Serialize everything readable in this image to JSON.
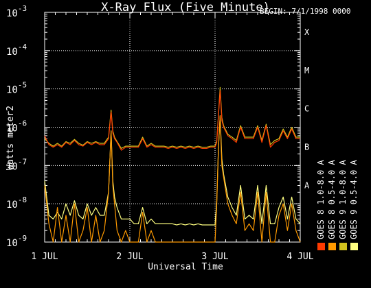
{
  "header": {
    "title": "X-Ray Flux (Five Minute)",
    "begin": "BEGIN: 7/1/1998 0000"
  },
  "axes": {
    "ylabel": "Watts meter2",
    "xlabel": "Universal Time"
  },
  "legend": {
    "items": [
      {
        "label": "GOES 8 1.0-8.0 A",
        "color": "#ff3a00"
      },
      {
        "label": "GOES 8 0.5-4.0 A",
        "color": "#ff9a00"
      },
      {
        "label": "GOES 9 1.0-8.0 A",
        "color": "#d2c21e"
      },
      {
        "label": "GOES 9 0.5-4.0 A",
        "color": "#ffff80"
      }
    ]
  },
  "chart_data": {
    "type": "line",
    "title": "X-Ray Flux (Five Minute)",
    "xlabel": "Universal Time",
    "ylabel": "Watts meter2",
    "x_ticks": [
      "1 JUL",
      "2 JUL",
      "3 JUL",
      "4 JUL"
    ],
    "y_ticks": [
      "10^-9",
      "10^-8",
      "10^-7",
      "10^-6",
      "10^-5",
      "10^-4",
      "10^-3"
    ],
    "y_scale": "log",
    "ylim": [
      1e-09,
      0.001
    ],
    "x_range_days": [
      1.0,
      4.0
    ],
    "class_labels": [
      {
        "label": "A",
        "flux": 1e-08
      },
      {
        "label": "B",
        "flux": 1e-07
      },
      {
        "label": "C",
        "flux": 1e-06
      },
      {
        "label": "M",
        "flux": 1e-05
      },
      {
        "label": "X",
        "flux": 0.0001
      }
    ],
    "grid": true,
    "series": [
      {
        "name": "GOES 8 1.0-8.0 A",
        "x": [
          1.0,
          1.05,
          1.1,
          1.15,
          1.2,
          1.25,
          1.3,
          1.35,
          1.4,
          1.45,
          1.5,
          1.55,
          1.6,
          1.65,
          1.7,
          1.75,
          1.78,
          1.8,
          1.82,
          1.85,
          1.9,
          1.95,
          2.0,
          2.05,
          2.1,
          2.15,
          2.2,
          2.25,
          2.3,
          2.35,
          2.4,
          2.45,
          2.5,
          2.55,
          2.6,
          2.65,
          2.7,
          2.75,
          2.8,
          2.85,
          2.9,
          2.95,
          3.0,
          3.02,
          3.04,
          3.06,
          3.08,
          3.1,
          3.15,
          3.2,
          3.25,
          3.3,
          3.35,
          3.4,
          3.45,
          3.5,
          3.55,
          3.6,
          3.65,
          3.7,
          3.75,
          3.8,
          3.85,
          3.9,
          3.95,
          4.0
        ],
        "y": [
          6e-07,
          3.5e-07,
          3e-07,
          3.5e-07,
          3e-07,
          4e-07,
          3.5e-07,
          4.5e-07,
          3.5e-07,
          3.2e-07,
          4e-07,
          3.5e-07,
          4e-07,
          3.5e-07,
          3.5e-07,
          5e-07,
          2.5e-06,
          7e-07,
          5e-07,
          4e-07,
          2.5e-07,
          3e-07,
          3e-07,
          3e-07,
          3e-07,
          5e-07,
          3e-07,
          3.5e-07,
          3e-07,
          3e-07,
          3e-07,
          2.8e-07,
          3e-07,
          2.8e-07,
          3e-07,
          2.8e-07,
          3e-07,
          2.8e-07,
          3e-07,
          2.8e-07,
          2.8e-07,
          3e-07,
          3e-07,
          4e-07,
          2e-06,
          9e-06,
          1.5e-06,
          1e-06,
          6e-07,
          5e-07,
          4e-07,
          1e-06,
          5e-07,
          5e-07,
          5e-07,
          1e-06,
          4e-07,
          1.1e-06,
          3e-07,
          4e-07,
          4.5e-07,
          8e-07,
          5e-07,
          9e-07,
          5e-07,
          5e-07
        ]
      },
      {
        "name": "GOES 8 0.5-4.0 A",
        "x": [
          1.0,
          1.05,
          1.1,
          1.15,
          1.2,
          1.25,
          1.3,
          1.35,
          1.4,
          1.45,
          1.5,
          1.55,
          1.6,
          1.65,
          1.7,
          1.75,
          1.78,
          1.8,
          1.82,
          1.85,
          1.9,
          1.95,
          2.0,
          2.05,
          2.1,
          2.15,
          2.2,
          2.25,
          2.3,
          2.35,
          2.4,
          2.45,
          2.5,
          2.55,
          2.6,
          2.65,
          2.7,
          2.75,
          2.8,
          2.85,
          2.9,
          2.95,
          3.0,
          3.02,
          3.04,
          3.06,
          3.08,
          3.1,
          3.15,
          3.2,
          3.25,
          3.3,
          3.35,
          3.4,
          3.45,
          3.5,
          3.55,
          3.6,
          3.65,
          3.7,
          3.75,
          3.8,
          3.85,
          3.9,
          3.95,
          4.0
        ],
        "y": [
          3e-08,
          3e-09,
          1e-09,
          8e-09,
          1e-09,
          5e-09,
          1e-09,
          1e-08,
          1e-09,
          2e-09,
          8e-09,
          1e-09,
          5e-09,
          1e-09,
          2e-09,
          2e-08,
          8e-07,
          3e-08,
          1e-08,
          2e-09,
          1e-09,
          2e-09,
          1e-09,
          1e-09,
          1e-09,
          6e-09,
          1e-09,
          2e-09,
          1e-09,
          1e-09,
          1e-09,
          1e-09,
          1e-09,
          1e-09,
          1e-09,
          1e-09,
          1e-09,
          1e-09,
          1e-09,
          1e-09,
          1e-09,
          1e-09,
          1e-09,
          1e-08,
          3e-07,
          2e-06,
          1e-07,
          5e-08,
          1e-08,
          5e-09,
          3e-09,
          2e-08,
          2e-09,
          3e-09,
          2e-09,
          2e-08,
          1e-09,
          2e-08,
          1e-09,
          1e-09,
          5e-09,
          1e-08,
          2e-09,
          1e-08,
          2e-09,
          1e-09
        ]
      },
      {
        "name": "GOES 9 1.0-8.0 A",
        "x": [
          1.0,
          1.05,
          1.1,
          1.15,
          1.2,
          1.25,
          1.3,
          1.35,
          1.4,
          1.45,
          1.5,
          1.55,
          1.6,
          1.65,
          1.7,
          1.75,
          1.78,
          1.8,
          1.82,
          1.85,
          1.9,
          1.95,
          2.0,
          2.05,
          2.1,
          2.15,
          2.2,
          2.25,
          2.3,
          2.35,
          2.4,
          2.45,
          2.5,
          2.55,
          2.6,
          2.65,
          2.7,
          2.75,
          2.8,
          2.85,
          2.9,
          2.95,
          3.0,
          3.02,
          3.04,
          3.06,
          3.08,
          3.1,
          3.15,
          3.2,
          3.25,
          3.3,
          3.35,
          3.4,
          3.45,
          3.5,
          3.55,
          3.6,
          3.65,
          3.7,
          3.75,
          3.8,
          3.85,
          3.9,
          3.95,
          4.0
        ],
        "y": [
          5e-07,
          3.8e-07,
          3.2e-07,
          3.8e-07,
          3.2e-07,
          4.2e-07,
          3.8e-07,
          4.8e-07,
          3.8e-07,
          3.4e-07,
          4.2e-07,
          3.8e-07,
          4.2e-07,
          3.8e-07,
          3.8e-07,
          5.5e-07,
          2.8e-06,
          8e-07,
          5.5e-07,
          4.2e-07,
          2.8e-07,
          3.2e-07,
          3.2e-07,
          3.2e-07,
          3.2e-07,
          5.5e-07,
          3.2e-07,
          3.8e-07,
          3.2e-07,
          3.2e-07,
          3.2e-07,
          3e-07,
          3.2e-07,
          3e-07,
          3.2e-07,
          3e-07,
          3.2e-07,
          3e-07,
          3.2e-07,
          3e-07,
          3e-07,
          3.2e-07,
          3.2e-07,
          4.5e-07,
          2.2e-06,
          1.1e-05,
          1.8e-06,
          1.1e-06,
          6.5e-07,
          5.5e-07,
          4.5e-07,
          1.1e-06,
          5.5e-07,
          5.5e-07,
          5.5e-07,
          1.1e-06,
          4.5e-07,
          1.2e-06,
          3.5e-07,
          4.5e-07,
          5e-07,
          9e-07,
          5.5e-07,
          1e-06,
          5.5e-07,
          5.5e-07
        ]
      },
      {
        "name": "GOES 9 0.5-4.0 A",
        "x": [
          1.0,
          1.05,
          1.1,
          1.15,
          1.2,
          1.25,
          1.3,
          1.35,
          1.4,
          1.45,
          1.5,
          1.55,
          1.6,
          1.65,
          1.7,
          1.75,
          1.78,
          1.8,
          1.82,
          1.85,
          1.9,
          1.95,
          2.0,
          2.05,
          2.1,
          2.15,
          2.2,
          2.25,
          2.3,
          2.35,
          2.4,
          2.45,
          2.5,
          2.55,
          2.6,
          2.65,
          2.7,
          2.75,
          2.8,
          2.85,
          2.9,
          2.95,
          3.0,
          3.02,
          3.04,
          3.06,
          3.08,
          3.1,
          3.15,
          3.2,
          3.25,
          3.3,
          3.35,
          3.4,
          3.45,
          3.5,
          3.55,
          3.6,
          3.65,
          3.7,
          3.75,
          3.8,
          3.85,
          3.9,
          3.95,
          4.0
        ],
        "y": [
          4e-08,
          5e-09,
          4e-09,
          6e-09,
          4e-09,
          1e-08,
          5e-09,
          1.2e-08,
          5e-09,
          4e-09,
          1e-08,
          5e-09,
          8e-09,
          5e-09,
          5e-09,
          2e-08,
          8e-07,
          4e-08,
          1.5e-08,
          8e-09,
          4e-09,
          4e-09,
          4e-09,
          3e-09,
          3e-09,
          8e-09,
          3e-09,
          4e-09,
          3e-09,
          3e-09,
          3e-09,
          3e-09,
          3e-09,
          2.8e-09,
          3e-09,
          2.8e-09,
          3e-09,
          2.8e-09,
          3e-09,
          2.8e-09,
          2.8e-09,
          2.8e-09,
          2.8e-09,
          1.2e-08,
          3e-07,
          2e-06,
          1.5e-07,
          6e-08,
          1.5e-08,
          8e-09,
          5e-09,
          3e-08,
          4e-09,
          5e-09,
          4e-09,
          3e-08,
          3e-09,
          3e-08,
          3e-09,
          3e-09,
          8e-09,
          1.5e-08,
          4e-09,
          1.5e-08,
          4e-09,
          3e-09
        ]
      }
    ]
  }
}
